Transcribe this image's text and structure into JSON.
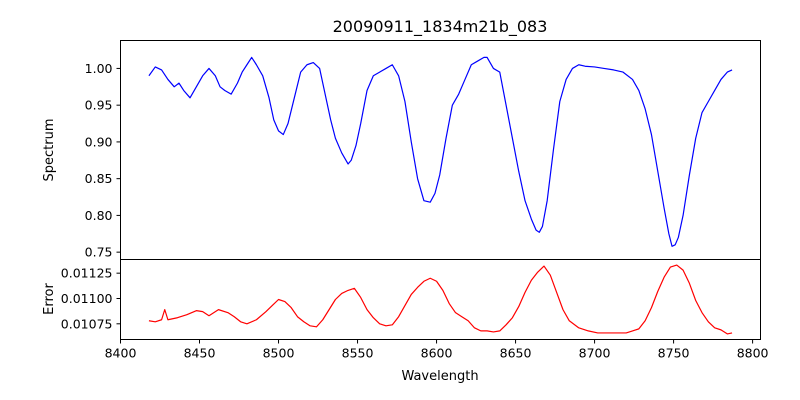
{
  "chart_data": [
    {
      "type": "line",
      "title": "20090911_1834m21b_083",
      "xlabel": "",
      "ylabel": "Spectrum",
      "xlim": [
        8400,
        8805
      ],
      "ylim": [
        0.74,
        1.038
      ],
      "xticks": [],
      "yticks": [
        "0.75",
        "0.80",
        "0.85",
        "0.90",
        "0.95",
        "1.00"
      ],
      "grid": false,
      "series": [
        {
          "color": "#0000ff",
          "x": [
            8418,
            8422,
            8426,
            8430,
            8434,
            8437,
            8440,
            8444,
            8448,
            8452,
            8456,
            8460,
            8463,
            8466,
            8470,
            8474,
            8477,
            8480,
            8483,
            8486,
            8490,
            8494,
            8497,
            8500,
            8503,
            8506,
            8510,
            8514,
            8518,
            8522,
            8526,
            8530,
            8533,
            8536,
            8540,
            8544,
            8546,
            8549,
            8552,
            8556,
            8560,
            8564,
            8568,
            8572,
            8576,
            8580,
            8584,
            8588,
            8592,
            8596,
            8599,
            8602,
            8606,
            8610,
            8614,
            8618,
            8622,
            8626,
            8630,
            8632,
            8636,
            8640,
            8644,
            8648,
            8652,
            8656,
            8660,
            8663,
            8665,
            8667,
            8670,
            8674,
            8678,
            8682,
            8686,
            8690,
            8694,
            8700,
            8706,
            8712,
            8718,
            8724,
            8728,
            8732,
            8736,
            8740,
            8744,
            8747,
            8749,
            8751,
            8753,
            8756,
            8760,
            8764,
            8768,
            8772,
            8776,
            8780,
            8784,
            8787
          ],
          "y": [
            0.99,
            1.002,
            0.998,
            0.985,
            0.975,
            0.98,
            0.97,
            0.96,
            0.975,
            0.99,
            1.0,
            0.99,
            0.975,
            0.97,
            0.965,
            0.98,
            0.995,
            1.005,
            1.015,
            1.005,
            0.99,
            0.96,
            0.93,
            0.915,
            0.91,
            0.925,
            0.96,
            0.995,
            1.005,
            1.008,
            1.0,
            0.96,
            0.93,
            0.905,
            0.885,
            0.87,
            0.875,
            0.895,
            0.925,
            0.97,
            0.99,
            0.995,
            1.0,
            1.005,
            0.99,
            0.955,
            0.9,
            0.85,
            0.82,
            0.818,
            0.83,
            0.855,
            0.905,
            0.95,
            0.965,
            0.985,
            1.005,
            1.01,
            1.015,
            1.015,
            1.0,
            0.995,
            0.95,
            0.905,
            0.86,
            0.82,
            0.795,
            0.78,
            0.777,
            0.785,
            0.82,
            0.89,
            0.955,
            0.985,
            1.0,
            1.005,
            1.003,
            1.002,
            1.0,
            0.998,
            0.995,
            0.985,
            0.97,
            0.945,
            0.91,
            0.86,
            0.81,
            0.775,
            0.758,
            0.76,
            0.77,
            0.8,
            0.855,
            0.905,
            0.94,
            0.955,
            0.97,
            0.985,
            0.995,
            0.998
          ]
        }
      ]
    },
    {
      "type": "line",
      "title": "",
      "xlabel": "Wavelength",
      "ylabel": "Error",
      "xlim": [
        8400,
        8805
      ],
      "ylim": [
        0.010595,
        0.011385
      ],
      "xticks": [
        "8400",
        "8450",
        "8500",
        "8550",
        "8600",
        "8650",
        "8700",
        "8750",
        "8800"
      ],
      "yticks": [
        "0.01075",
        "0.01100",
        "0.01125"
      ],
      "grid": false,
      "series": [
        {
          "color": "#ff0000",
          "x": [
            8418,
            8422,
            8426,
            8428,
            8430,
            8436,
            8442,
            8448,
            8452,
            8456,
            8462,
            8468,
            8472,
            8476,
            8480,
            8486,
            8492,
            8496,
            8500,
            8504,
            8508,
            8512,
            8516,
            8520,
            8524,
            8528,
            8532,
            8536,
            8540,
            8544,
            8548,
            8552,
            8556,
            8560,
            8564,
            8568,
            8572,
            8576,
            8580,
            8584,
            8588,
            8592,
            8596,
            8600,
            8604,
            8608,
            8612,
            8616,
            8620,
            8624,
            8628,
            8632,
            8636,
            8640,
            8644,
            8648,
            8652,
            8656,
            8660,
            8664,
            8668,
            8672,
            8676,
            8680,
            8684,
            8690,
            8696,
            8702,
            8708,
            8714,
            8720,
            8724,
            8728,
            8732,
            8736,
            8740,
            8744,
            8748,
            8752,
            8756,
            8760,
            8764,
            8768,
            8772,
            8776,
            8780,
            8784,
            8787
          ],
          "y": [
            0.01078,
            0.01077,
            0.01079,
            0.01089,
            0.01079,
            0.01081,
            0.01084,
            0.01088,
            0.01087,
            0.01083,
            0.01089,
            0.01086,
            0.01082,
            0.01077,
            0.01075,
            0.01079,
            0.01087,
            0.01093,
            0.01099,
            0.01097,
            0.01091,
            0.01082,
            0.01077,
            0.01073,
            0.01072,
            0.01079,
            0.01089,
            0.01099,
            0.01105,
            0.01108,
            0.0111,
            0.01101,
            0.01089,
            0.01081,
            0.01075,
            0.01073,
            0.01074,
            0.01082,
            0.01093,
            0.01104,
            0.01111,
            0.01117,
            0.0112,
            0.01117,
            0.01108,
            0.01095,
            0.01086,
            0.01082,
            0.01078,
            0.01071,
            0.01068,
            0.01068,
            0.01067,
            0.01068,
            0.01074,
            0.01081,
            0.01092,
            0.01106,
            0.01118,
            0.01126,
            0.01132,
            0.01123,
            0.01106,
            0.01089,
            0.01078,
            0.01071,
            0.01068,
            0.01066,
            0.01066,
            0.01066,
            0.01066,
            0.01068,
            0.0107,
            0.01078,
            0.01091,
            0.01107,
            0.01121,
            0.01131,
            0.01133,
            0.01128,
            0.01115,
            0.01098,
            0.01086,
            0.01077,
            0.01071,
            0.01069,
            0.01065,
            0.01066
          ]
        }
      ]
    }
  ]
}
